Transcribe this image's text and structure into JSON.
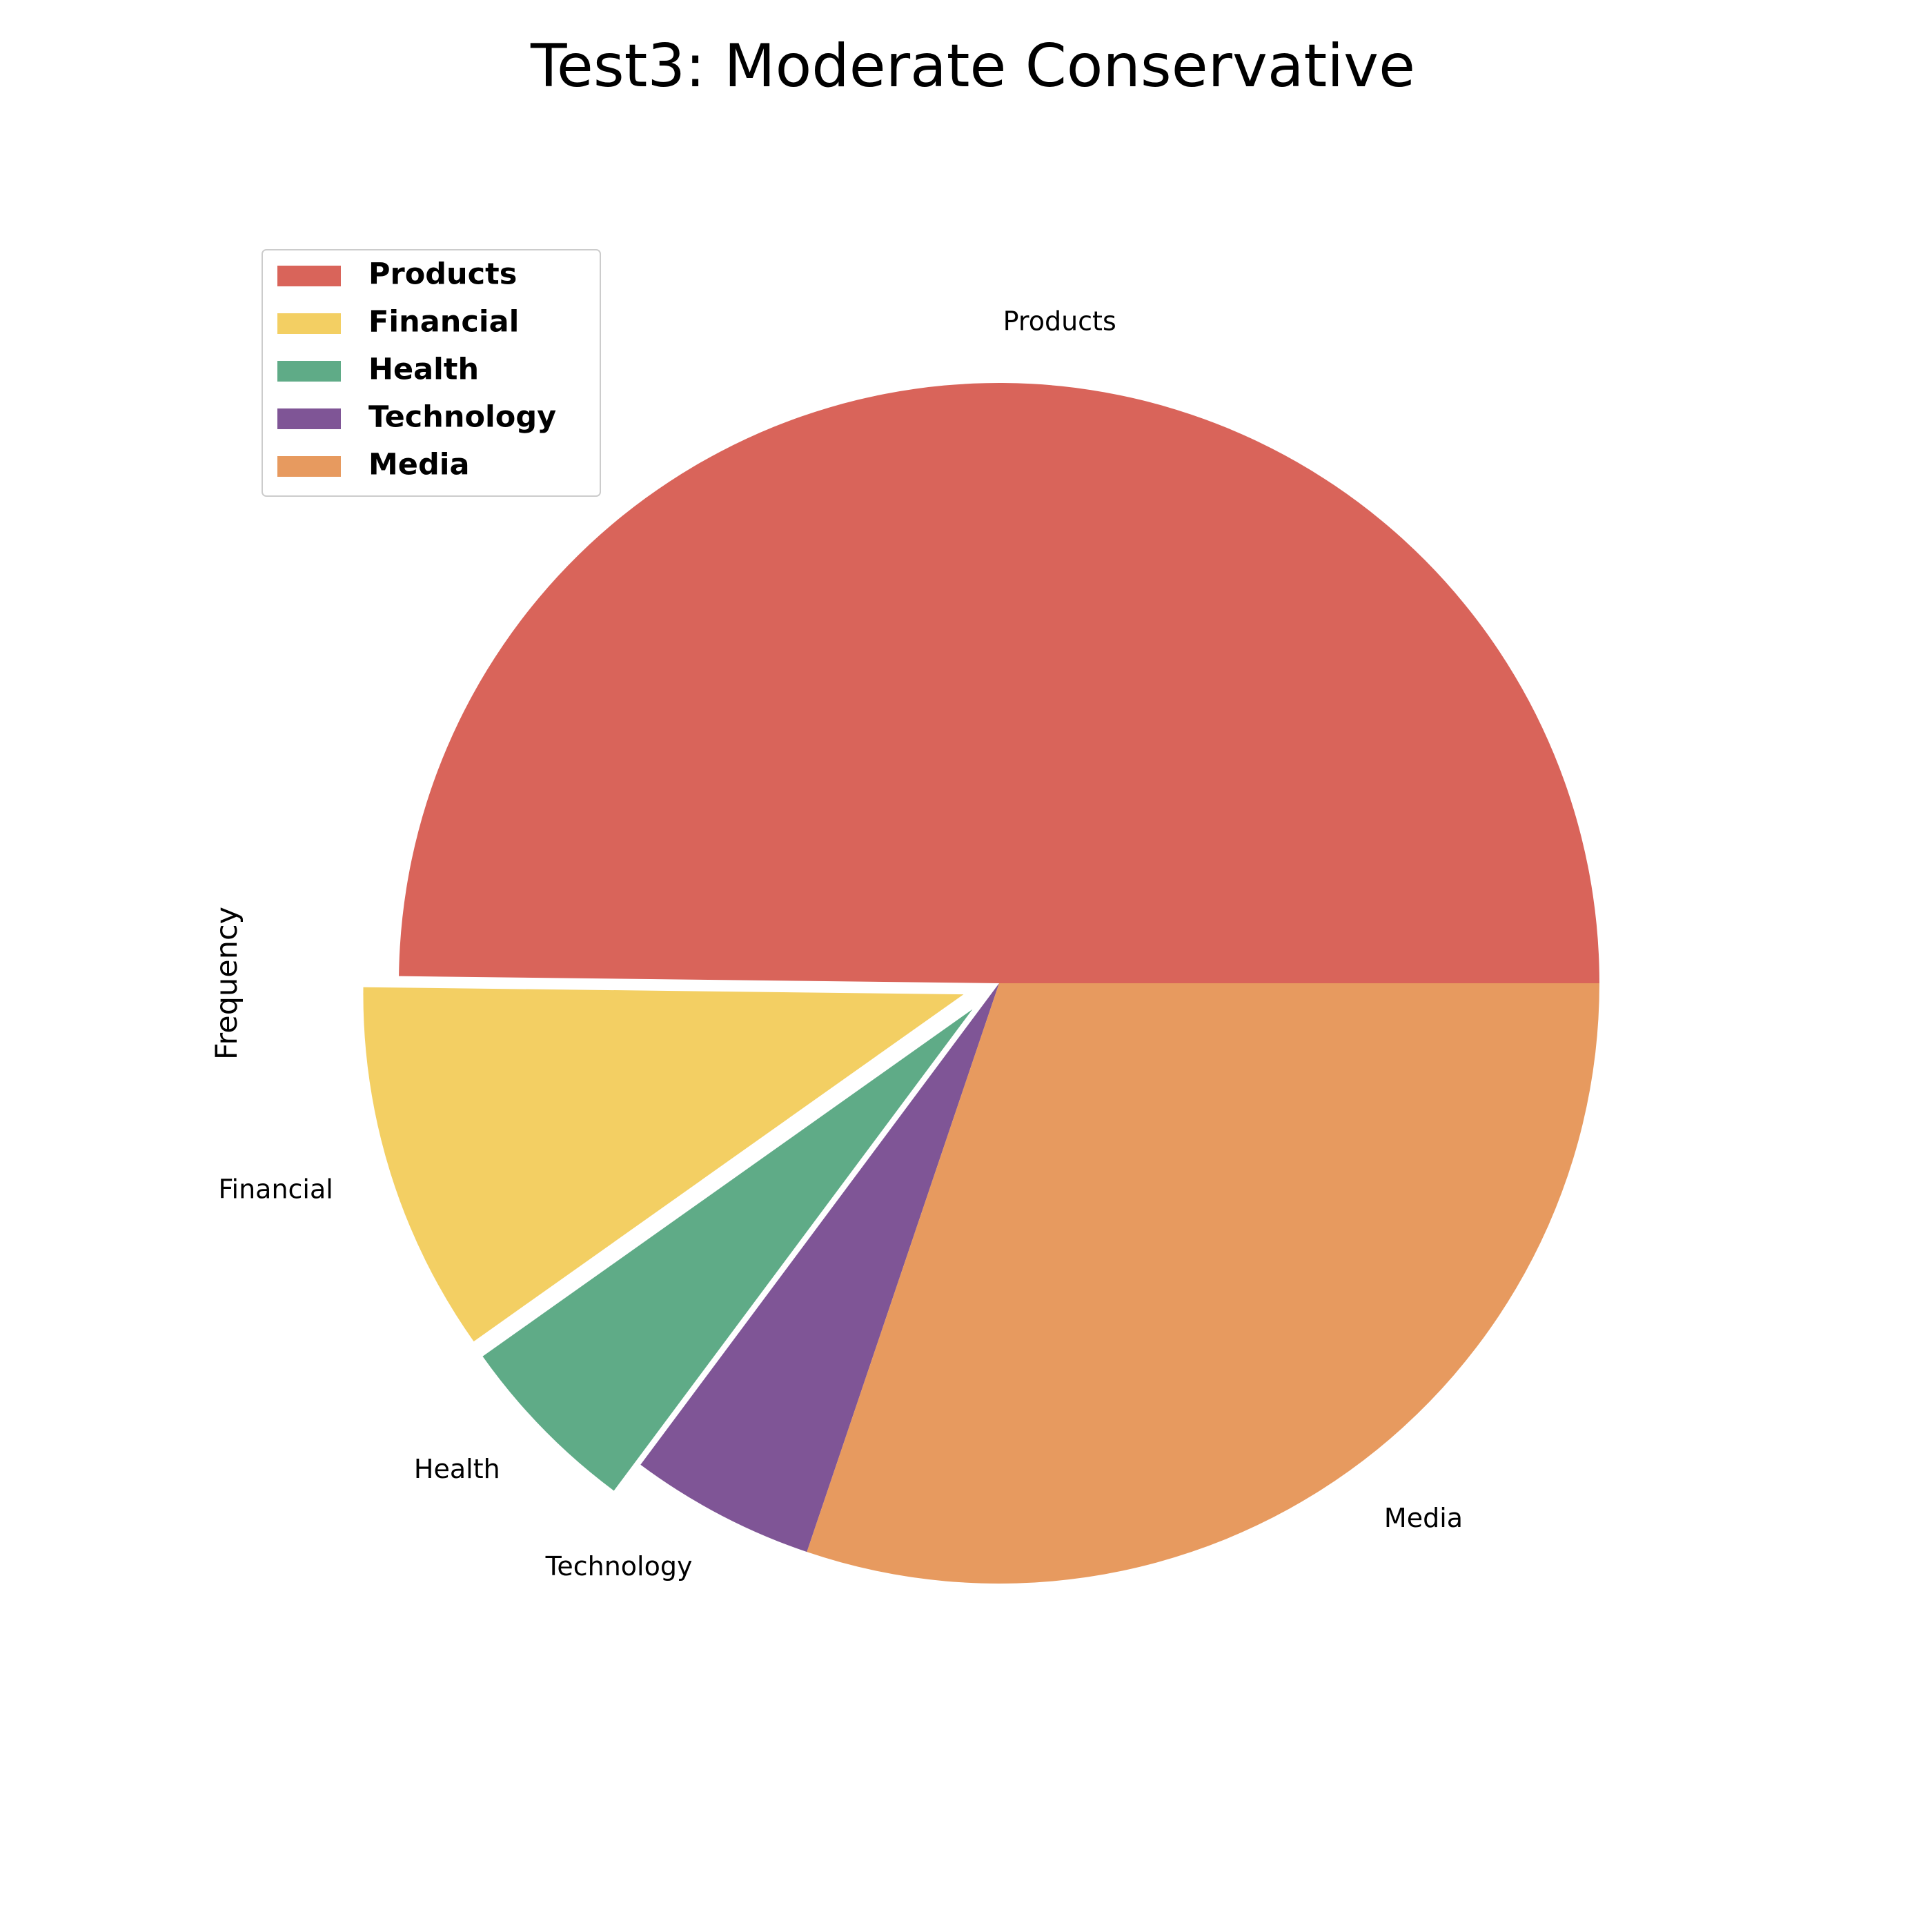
{
  "chart_data": {
    "type": "pie",
    "title": "Test3: Moderate Conservative",
    "ylabel": "Frequency",
    "categories": [
      "Products",
      "Financial",
      "Health",
      "Technology",
      "Media"
    ],
    "values": [
      52.8,
      10.6,
      5.3,
      5.3,
      32.0
    ],
    "colors": [
      "#d9645a",
      "#f3cf63",
      "#5fab87",
      "#7f5596",
      "#e79a5f"
    ],
    "exploded": [
      false,
      true,
      true,
      false,
      false
    ],
    "legend_position": "upper-left",
    "start_angle_deg": 0,
    "direction": "counterclockwise"
  }
}
